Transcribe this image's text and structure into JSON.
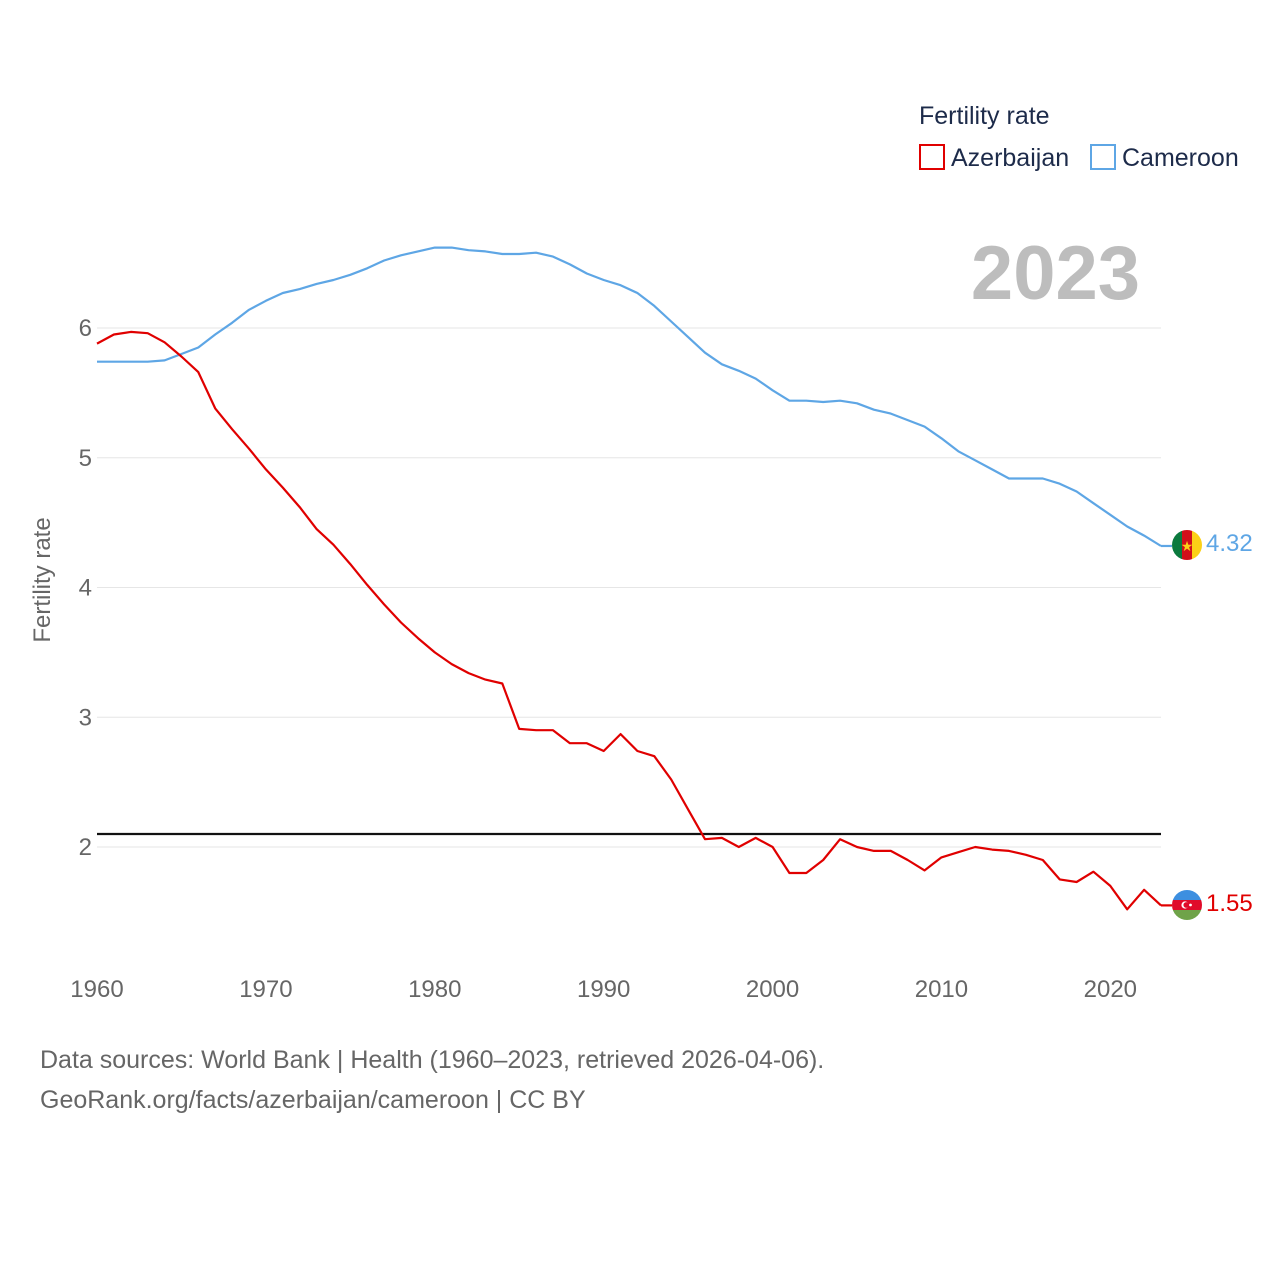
{
  "chart_data": {
    "type": "line",
    "title": "",
    "legend_title": "Fertility rate",
    "legend_position": "top-right",
    "ylabel": "Fertility rate",
    "xlabel": "",
    "year_label": "2023",
    "x": [
      1960,
      1961,
      1962,
      1963,
      1964,
      1965,
      1966,
      1967,
      1968,
      1969,
      1970,
      1971,
      1972,
      1973,
      1974,
      1975,
      1976,
      1977,
      1978,
      1979,
      1980,
      1981,
      1982,
      1983,
      1984,
      1985,
      1986,
      1987,
      1988,
      1989,
      1990,
      1991,
      1992,
      1993,
      1994,
      1995,
      1996,
      1997,
      1998,
      1999,
      2000,
      2001,
      2002,
      2003,
      2004,
      2005,
      2006,
      2007,
      2008,
      2009,
      2010,
      2011,
      2012,
      2013,
      2014,
      2015,
      2016,
      2017,
      2018,
      2019,
      2020,
      2021,
      2022,
      2023
    ],
    "xlim": [
      1960,
      2023
    ],
    "ylim": [
      1.1,
      6.75
    ],
    "x_ticks": [
      1960,
      1970,
      1980,
      1990,
      2000,
      2010,
      2020
    ],
    "y_ticks": [
      2,
      3,
      4,
      5,
      6
    ],
    "reference_line": 2.1,
    "grid": true,
    "series": [
      {
        "name": "Azerbaijan",
        "color": "#e00000",
        "end_label": "1.55",
        "flag": "azerbaijan-flag",
        "values": [
          5.88,
          5.95,
          5.97,
          5.96,
          5.89,
          5.78,
          5.66,
          5.38,
          5.22,
          5.07,
          4.91,
          4.77,
          4.62,
          4.45,
          4.33,
          4.18,
          4.02,
          3.87,
          3.73,
          3.61,
          3.5,
          3.41,
          3.34,
          3.29,
          3.26,
          2.91,
          2.9,
          2.9,
          2.8,
          2.8,
          2.74,
          2.87,
          2.74,
          2.7,
          2.52,
          2.29,
          2.06,
          2.07,
          2.0,
          2.07,
          2.0,
          1.8,
          1.8,
          1.9,
          2.06,
          2.0,
          1.97,
          1.97,
          1.9,
          1.82,
          1.92,
          1.96,
          2.0,
          1.98,
          1.97,
          1.94,
          1.9,
          1.75,
          1.73,
          1.81,
          1.7,
          1.52,
          1.67,
          1.55
        ]
      },
      {
        "name": "Cameroon",
        "color": "#5ea6e5",
        "end_label": "4.32",
        "flag": "cameroon-flag",
        "values": [
          5.74,
          5.74,
          5.74,
          5.74,
          5.75,
          5.8,
          5.85,
          5.95,
          6.04,
          6.14,
          6.21,
          6.27,
          6.3,
          6.34,
          6.37,
          6.41,
          6.46,
          6.52,
          6.56,
          6.59,
          6.62,
          6.62,
          6.6,
          6.59,
          6.57,
          6.57,
          6.58,
          6.55,
          6.49,
          6.42,
          6.37,
          6.33,
          6.27,
          6.17,
          6.05,
          5.93,
          5.81,
          5.72,
          5.67,
          5.61,
          5.52,
          5.44,
          5.44,
          5.43,
          5.44,
          5.42,
          5.37,
          5.34,
          5.29,
          5.24,
          5.15,
          5.05,
          4.98,
          4.91,
          4.84,
          4.84,
          4.84,
          4.8,
          4.74,
          4.65,
          4.56,
          4.47,
          4.4,
          4.32
        ]
      }
    ]
  },
  "source": {
    "line1": "Data sources: World Bank | Health (1960–2023, retrieved 2026-04-06).",
    "line2": "GeoRank.org/facts/azerbaijan/cameroon | CC BY"
  }
}
